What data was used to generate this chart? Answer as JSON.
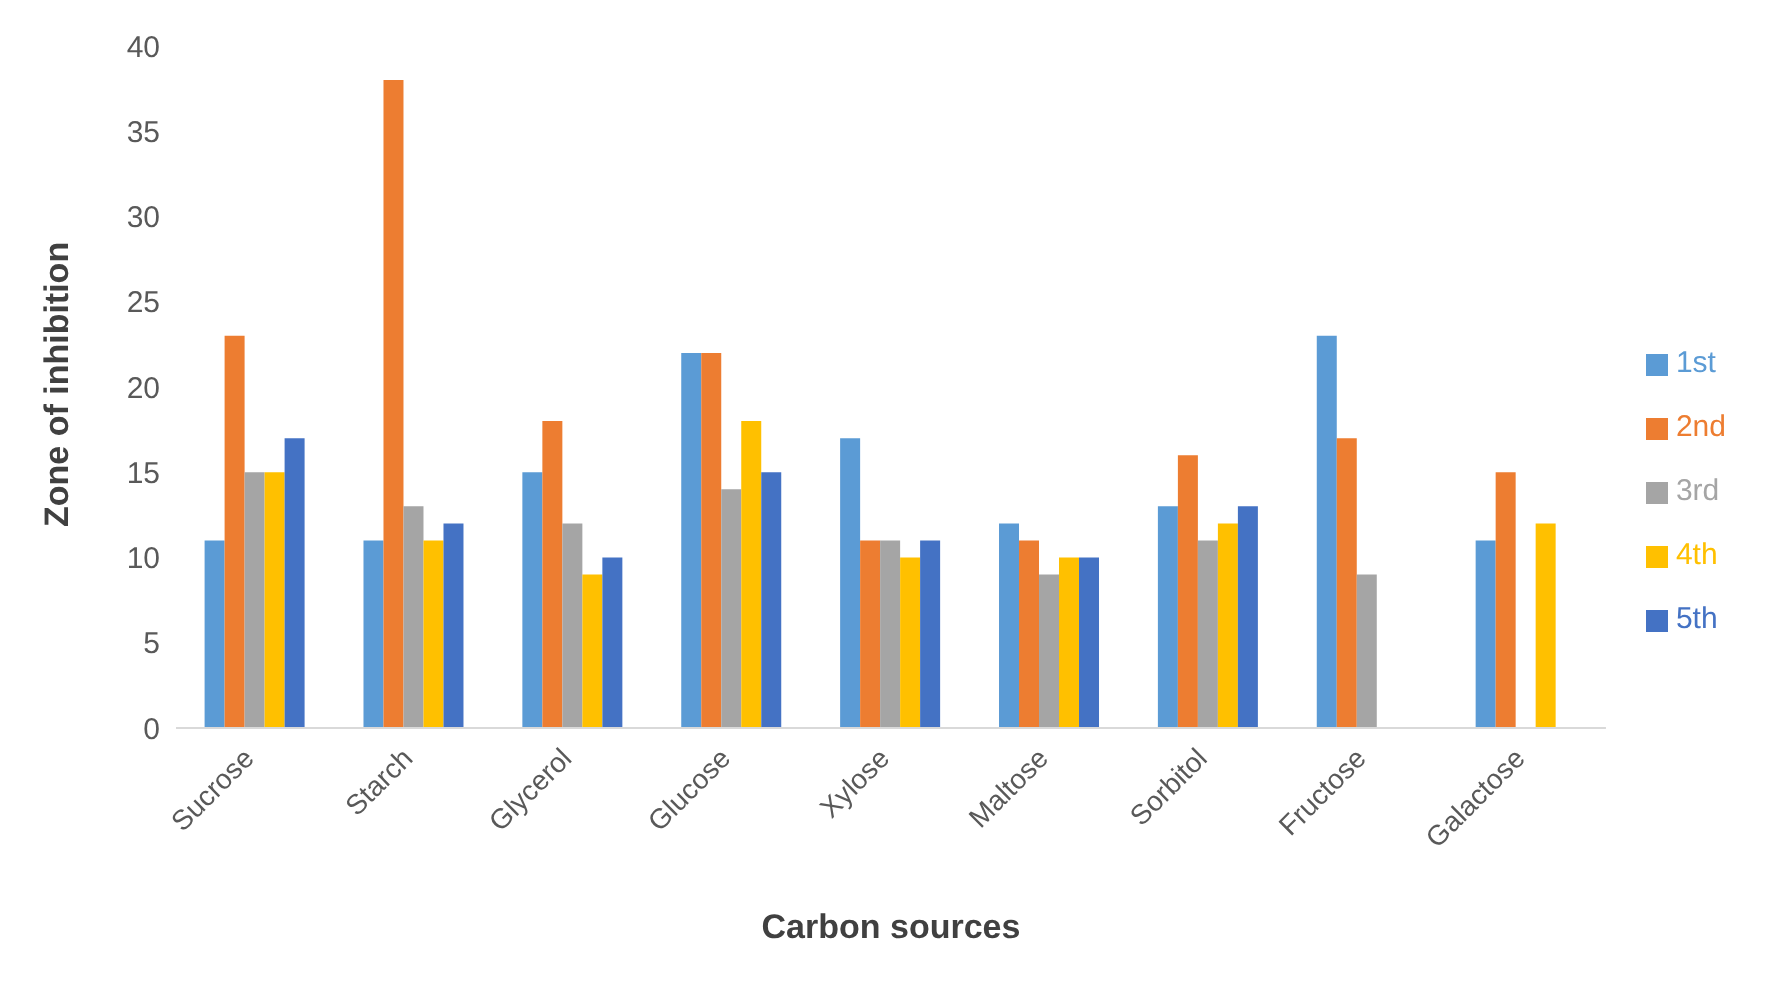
{
  "chart_data": {
    "type": "bar",
    "xlabel": "Carbon sources",
    "ylabel": "Zone of inhibition",
    "categories": [
      "Sucrose",
      "Starch",
      "Glycerol",
      "Glucose",
      "Xylose",
      "Maltose",
      "Sorbitol",
      "Fructose",
      "Galactose"
    ],
    "series": [
      {
        "name": "1st",
        "color": "#5b9bd5",
        "values": [
          11,
          11,
          15,
          22,
          17,
          12,
          13,
          23,
          11
        ]
      },
      {
        "name": "2nd",
        "color": "#ed7d31",
        "values": [
          23,
          38,
          18,
          22,
          11,
          11,
          16,
          17,
          15
        ]
      },
      {
        "name": "3rd",
        "color": "#a5a5a5",
        "values": [
          15,
          13,
          12,
          14,
          11,
          9,
          11,
          9,
          null
        ]
      },
      {
        "name": "4th",
        "color": "#ffc000",
        "values": [
          15,
          11,
          9,
          18,
          10,
          10,
          12,
          null,
          12
        ]
      },
      {
        "name": "5th",
        "color": "#4472c4",
        "values": [
          17,
          12,
          10,
          15,
          11,
          10,
          13,
          null,
          null
        ]
      }
    ],
    "ylim": [
      0,
      40
    ],
    "yticks": [
      0,
      5,
      10,
      15,
      20,
      25,
      30,
      35,
      40
    ],
    "grid": false,
    "legend": "right"
  }
}
